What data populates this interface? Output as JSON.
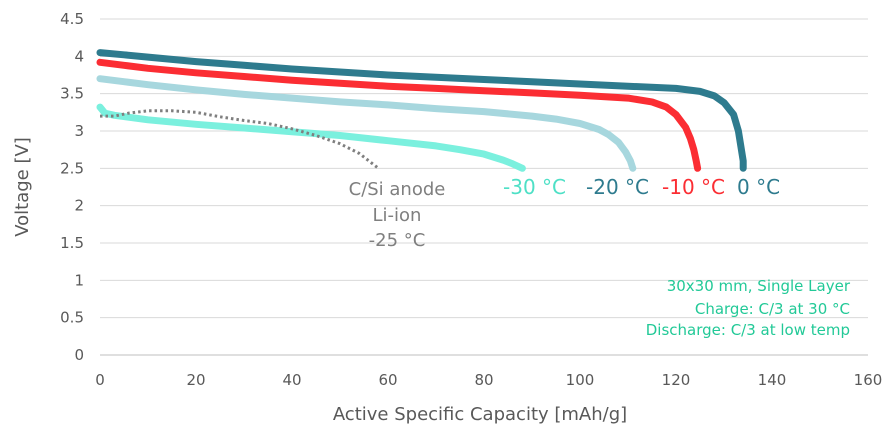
{
  "chart_data": {
    "type": "line",
    "xlabel": "Active Specific Capacity [mAh/g]",
    "ylabel": "Voltage [V]",
    "xlim": [
      0,
      160
    ],
    "ylim": [
      0,
      4.5
    ],
    "xticks": [
      "0",
      "20",
      "40",
      "60",
      "80",
      "100",
      "120",
      "140",
      "160"
    ],
    "yticks": [
      "0",
      "0.5",
      "1",
      "1.5",
      "2",
      "2.5",
      "3",
      "3.5",
      "4",
      "4.5"
    ],
    "grid": "horizontal",
    "series": [
      {
        "name": "0 °C",
        "color": "#2e7b8e",
        "style": "solid",
        "x": [
          0,
          5,
          10,
          20,
          30,
          40,
          50,
          60,
          70,
          80,
          90,
          100,
          110,
          120,
          125,
          128,
          130,
          132,
          133,
          133.5,
          134,
          134
        ],
        "y": [
          4.05,
          4.02,
          3.99,
          3.93,
          3.88,
          3.83,
          3.79,
          3.75,
          3.72,
          3.69,
          3.66,
          3.63,
          3.6,
          3.57,
          3.53,
          3.47,
          3.38,
          3.22,
          3.0,
          2.8,
          2.6,
          2.5
        ]
      },
      {
        "name": "-10 °C",
        "color": "#fb2d33",
        "style": "solid",
        "x": [
          0,
          5,
          10,
          20,
          30,
          40,
          50,
          60,
          70,
          80,
          90,
          100,
          110,
          115,
          118,
          120,
          122,
          123,
          123.7,
          124.2,
          124.5
        ],
        "y": [
          3.92,
          3.88,
          3.84,
          3.78,
          3.73,
          3.68,
          3.64,
          3.6,
          3.57,
          3.54,
          3.51,
          3.48,
          3.44,
          3.39,
          3.32,
          3.22,
          3.05,
          2.9,
          2.75,
          2.6,
          2.5
        ]
      },
      {
        "name": "-20 °C",
        "color": "#a7d7de",
        "style": "solid",
        "x": [
          0,
          5,
          10,
          20,
          30,
          40,
          50,
          60,
          70,
          80,
          90,
          95,
          100,
          104,
          106,
          108,
          109.5,
          110.5,
          111
        ],
        "y": [
          3.7,
          3.66,
          3.62,
          3.55,
          3.49,
          3.44,
          3.39,
          3.35,
          3.3,
          3.26,
          3.2,
          3.16,
          3.1,
          3.02,
          2.95,
          2.85,
          2.72,
          2.6,
          2.5
        ]
      },
      {
        "name": "-30 °C",
        "color": "#7bf0de",
        "style": "solid",
        "x": [
          0,
          1,
          3,
          10,
          20,
          30,
          40,
          50,
          60,
          70,
          75,
          80,
          84,
          86,
          88
        ],
        "y": [
          3.32,
          3.24,
          3.21,
          3.15,
          3.09,
          3.04,
          2.99,
          2.94,
          2.87,
          2.8,
          2.75,
          2.69,
          2.61,
          2.56,
          2.5
        ]
      },
      {
        "name": "C/Si anode Li-ion -25 °C",
        "color": "#7f7f7f",
        "style": "dotted",
        "x": [
          0,
          3,
          6,
          10,
          15,
          20,
          25,
          30,
          35,
          40,
          45,
          50,
          54,
          57,
          58
        ],
        "y": [
          3.2,
          3.2,
          3.24,
          3.27,
          3.27,
          3.25,
          3.19,
          3.14,
          3.1,
          3.03,
          2.94,
          2.83,
          2.7,
          2.55,
          2.5
        ]
      }
    ],
    "series_labels": [
      "-30 °C",
      "-20 °C",
      "-10 °C",
      "0 °C"
    ],
    "annotations": {
      "anode_lines": [
        "C/Si anode",
        "Li-ion",
        "-25 °C"
      ],
      "conditions_lines": [
        "30x30 mm, Single Layer",
        "Charge: C/3 at 30 °C",
        "Discharge: C/3 at low temp"
      ]
    }
  }
}
